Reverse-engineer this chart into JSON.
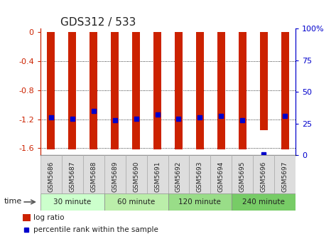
{
  "title": "GDS312 / 533",
  "samples": [
    "GSM5686",
    "GSM5687",
    "GSM5688",
    "GSM5689",
    "GSM5690",
    "GSM5691",
    "GSM5692",
    "GSM5693",
    "GSM5694",
    "GSM5695",
    "GSM5696",
    "GSM5697"
  ],
  "log_ratios": [
    -1.62,
    -1.62,
    -1.62,
    -1.62,
    -1.62,
    -1.62,
    -1.62,
    -1.62,
    -1.62,
    -1.62,
    -1.35,
    -1.62
  ],
  "percentile_ranks": [
    30,
    29,
    35,
    28,
    29,
    32,
    29,
    30,
    31,
    28,
    1,
    31
  ],
  "groups": [
    {
      "label": "30 minute",
      "start": 0,
      "end": 3
    },
    {
      "label": "60 minute",
      "start": 3,
      "end": 6
    },
    {
      "label": "120 minute",
      "start": 6,
      "end": 9
    },
    {
      "label": "240 minute",
      "start": 9,
      "end": 12
    }
  ],
  "group_colors": [
    "#ccffcc",
    "#aaffaa",
    "#88ee88",
    "#66dd66"
  ],
  "ylim_left": [
    -1.7,
    0.05
  ],
  "ylim_right": [
    0,
    100
  ],
  "yticks_left": [
    0,
    -0.4,
    -0.8,
    -1.2,
    -1.6
  ],
  "yticks_right": [
    0,
    25,
    50,
    75,
    100
  ],
  "bar_color": "#cc2200",
  "dot_color": "#0000cc",
  "grid_color": "#000000",
  "bg_color": "#ffffff",
  "left_tick_color": "#cc2200",
  "right_tick_color": "#0000cc",
  "bar_width": 0.35
}
